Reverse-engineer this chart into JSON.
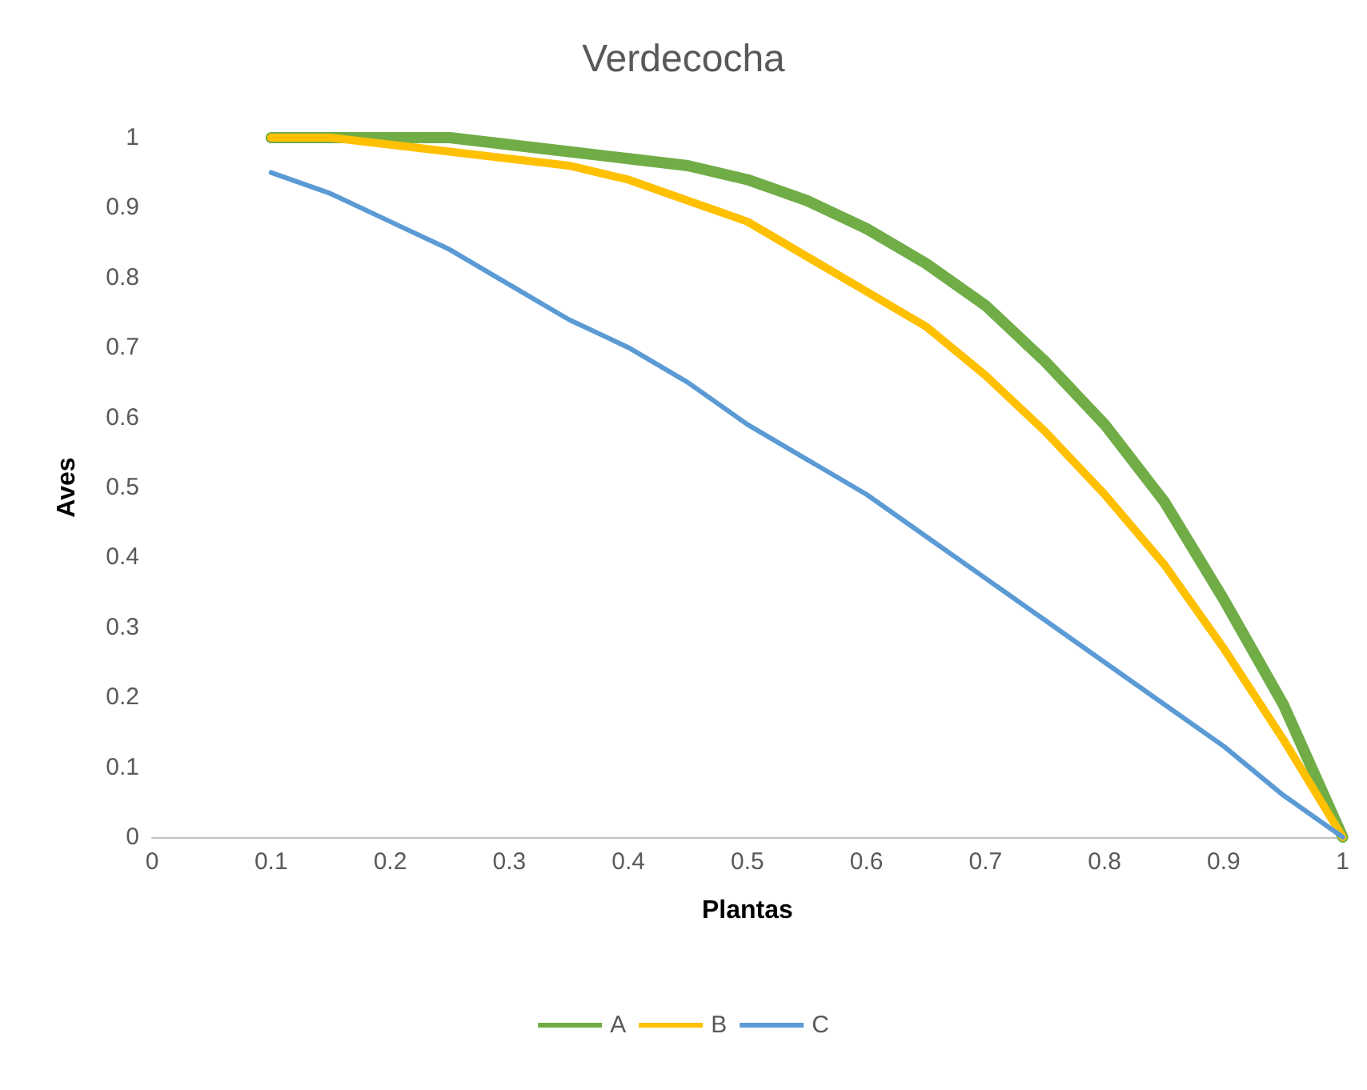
{
  "chart_data": {
    "type": "line",
    "title": "Verdecocha",
    "xlabel": "Plantas",
    "ylabel": "Aves",
    "x": [
      0.1,
      0.15,
      0.2,
      0.25,
      0.3,
      0.35,
      0.4,
      0.45,
      0.5,
      0.55,
      0.6,
      0.65,
      0.7,
      0.75,
      0.8,
      0.85,
      0.9,
      0.95,
      1
    ],
    "series": [
      {
        "name": "A",
        "color": "#70ad47",
        "values": [
          1,
          1,
          1,
          1,
          0.99,
          0.98,
          0.97,
          0.96,
          0.94,
          0.91,
          0.87,
          0.82,
          0.76,
          0.68,
          0.59,
          0.48,
          0.34,
          0.19,
          0
        ]
      },
      {
        "name": "B",
        "color": "#ffc000",
        "values": [
          1,
          1,
          0.99,
          0.98,
          0.97,
          0.96,
          0.94,
          0.91,
          0.88,
          0.83,
          0.78,
          0.73,
          0.66,
          0.58,
          0.49,
          0.39,
          0.27,
          0.14,
          0
        ]
      },
      {
        "name": "C",
        "color": "#5b9bd5",
        "values": [
          0.95,
          0.92,
          0.88,
          0.84,
          0.79,
          0.74,
          0.7,
          0.65,
          0.59,
          0.54,
          0.49,
          0.43,
          0.37,
          0.31,
          0.25,
          0.19,
          0.13,
          0.06,
          0
        ]
      }
    ],
    "xlim": [
      0,
      1
    ],
    "xticks": [
      0,
      0.1,
      0.2,
      0.3,
      0.4,
      0.5,
      0.6,
      0.7,
      0.8,
      0.9,
      1
    ],
    "ylim": [
      0,
      1
    ],
    "yticks": [
      0,
      0.1,
      0.2,
      0.3,
      0.4,
      0.5,
      0.6,
      0.7,
      0.8,
      0.9,
      1
    ],
    "grid": false,
    "legend": "bottom",
    "marker": "none",
    "line_style": "solid"
  }
}
